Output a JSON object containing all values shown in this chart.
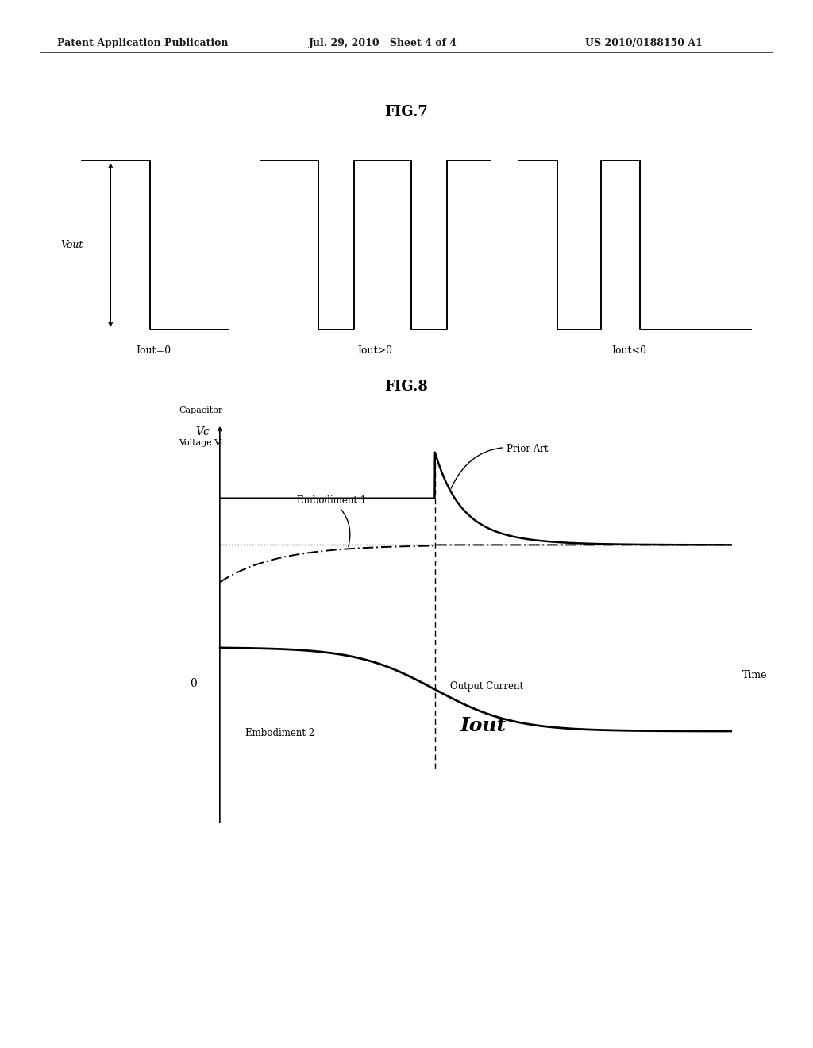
{
  "bg_color": "#ffffff",
  "fig7_title": "FIG.7",
  "fig8_title": "FIG.8",
  "header_left": "Patent Application Publication",
  "header_mid": "Jul. 29, 2010   Sheet 4 of 4",
  "header_right": "US 2010/0188150 A1",
  "fig7_vout_label": "Vout",
  "fig7_labels": [
    "Iout=0",
    "Iout>0",
    "Iout<0"
  ],
  "fig8_ylabel1_line1": "Capacitor",
  "fig8_ylabel1_line2": "Voltage Vc",
  "fig8_vc_label": "Vc",
  "fig8_zero_label": "0",
  "fig8_xlabel": "Time",
  "fig8_iout_label": "Iout",
  "fig8_output_current_label": "Output Current",
  "fig8_embodiment1_label": "Embodiment 1",
  "fig8_embodiment2_label": "Embodiment 2",
  "fig8_prior_art_label": "Prior Art"
}
